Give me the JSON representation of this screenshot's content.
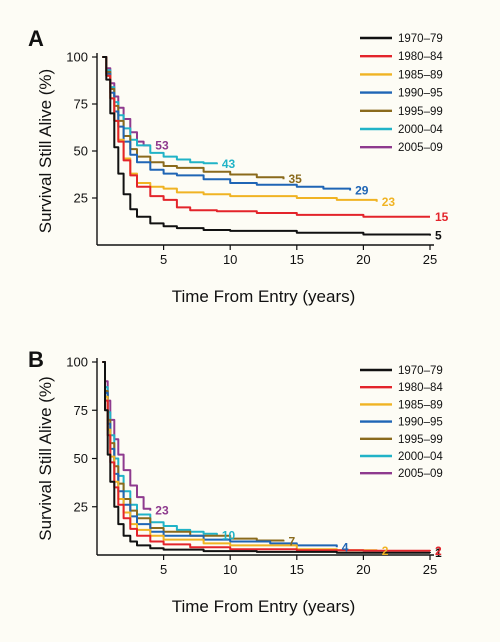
{
  "chart_data": [
    {
      "type": "line",
      "panel_label": "A",
      "xlabel": "Time From Entry (years)",
      "ylabel": "Survival Still Alive (%)",
      "xlim": [
        0,
        25
      ],
      "ylim": [
        0,
        100
      ],
      "xticks": [
        5,
        10,
        15,
        20,
        25
      ],
      "yticks": [
        25,
        50,
        75,
        100
      ],
      "legend_position": "top-right",
      "grid": false,
      "series": [
        {
          "name": "1970–79",
          "color": "#111111",
          "end_label": "5",
          "points": [
            [
              0.4,
              100
            ],
            [
              0.7,
              88
            ],
            [
              1,
              70
            ],
            [
              1.3,
              52
            ],
            [
              1.6,
              38
            ],
            [
              2,
              27
            ],
            [
              2.5,
              19
            ],
            [
              3,
              15
            ],
            [
              4,
              11.5
            ],
            [
              5,
              10
            ],
            [
              6,
              9
            ],
            [
              8,
              8
            ],
            [
              10,
              7.5
            ],
            [
              15,
              6.5
            ],
            [
              20,
              5.6
            ],
            [
              25,
              5
            ]
          ]
        },
        {
          "name": "1980–84",
          "color": "#e3242b",
          "end_label": "15",
          "points": [
            [
              0.4,
              100
            ],
            [
              0.7,
              90
            ],
            [
              1,
              78
            ],
            [
              1.3,
              66
            ],
            [
              1.6,
              55
            ],
            [
              2,
              45
            ],
            [
              2.5,
              37
            ],
            [
              3,
              31
            ],
            [
              4,
              26
            ],
            [
              5,
              24
            ],
            [
              6,
              20
            ],
            [
              7,
              18.5
            ],
            [
              9,
              18
            ],
            [
              12,
              17
            ],
            [
              15,
              16
            ],
            [
              20,
              15
            ],
            [
              25,
              15
            ]
          ]
        },
        {
          "name": "1985–89",
          "color": "#f0b323",
          "end_label": "23",
          "points": [
            [
              0.4,
              100
            ],
            [
              0.7,
              90
            ],
            [
              1,
              78
            ],
            [
              1.3,
              66
            ],
            [
              1.6,
              56
            ],
            [
              2,
              46
            ],
            [
              2.5,
              38
            ],
            [
              3,
              33
            ],
            [
              4,
              31
            ],
            [
              5,
              30
            ],
            [
              6,
              28
            ],
            [
              8,
              27
            ],
            [
              10,
              26
            ],
            [
              15,
              25
            ],
            [
              18,
              24
            ],
            [
              21,
              23
            ]
          ]
        },
        {
          "name": "1990–95",
          "color": "#1f65b5",
          "end_label": "29",
          "points": [
            [
              0.4,
              100
            ],
            [
              0.7,
              91
            ],
            [
              1,
              81
            ],
            [
              1.3,
              71
            ],
            [
              1.6,
              63
            ],
            [
              2,
              55
            ],
            [
              2.5,
              48
            ],
            [
              3,
              44
            ],
            [
              4,
              40
            ],
            [
              5,
              38
            ],
            [
              6,
              37
            ],
            [
              8,
              35
            ],
            [
              10,
              33
            ],
            [
              12,
              32
            ],
            [
              15,
              31
            ],
            [
              17,
              30
            ],
            [
              19,
              29
            ]
          ]
        },
        {
          "name": "1995–99",
          "color": "#8a6a1c",
          "end_label": "35",
          "points": [
            [
              0.4,
              100
            ],
            [
              0.7,
              92
            ],
            [
              1,
              83
            ],
            [
              1.3,
              74
            ],
            [
              1.6,
              66
            ],
            [
              2,
              58
            ],
            [
              2.5,
              51
            ],
            [
              3,
              47
            ],
            [
              4,
              44
            ],
            [
              5,
              42
            ],
            [
              6,
              41
            ],
            [
              8,
              39
            ],
            [
              10,
              37.5
            ],
            [
              12,
              36
            ],
            [
              14,
              35
            ]
          ]
        },
        {
          "name": "2000–04",
          "color": "#21b3c7",
          "end_label": "43",
          "points": [
            [
              0.4,
              100
            ],
            [
              0.7,
              93
            ],
            [
              1,
              84
            ],
            [
              1.3,
              76
            ],
            [
              1.6,
              69
            ],
            [
              2,
              62
            ],
            [
              2.5,
              56
            ],
            [
              3,
              53
            ],
            [
              4,
              49
            ],
            [
              5,
              47
            ],
            [
              6,
              45.5
            ],
            [
              7,
              44
            ],
            [
              8,
              43.5
            ],
            [
              9,
              43
            ]
          ]
        },
        {
          "name": "2005–09",
          "color": "#8e3a8e",
          "end_label": "53",
          "points": [
            [
              0.4,
              100
            ],
            [
              0.7,
              94
            ],
            [
              1,
              86
            ],
            [
              1.3,
              79
            ],
            [
              1.6,
              73
            ],
            [
              2,
              67
            ],
            [
              2.5,
              60
            ],
            [
              3,
              55
            ],
            [
              3.5,
              53
            ],
            [
              4,
              53
            ]
          ]
        }
      ]
    },
    {
      "type": "line",
      "panel_label": "B",
      "xlabel": "Time From Entry (years)",
      "ylabel": "Survival Still Alive (%)",
      "xlim": [
        0,
        25
      ],
      "ylim": [
        0,
        100
      ],
      "xticks": [
        5,
        10,
        15,
        20,
        25
      ],
      "yticks": [
        25,
        50,
        75,
        100
      ],
      "legend_position": "top-right",
      "grid": false,
      "series": [
        {
          "name": "1970–79",
          "color": "#111111",
          "end_label": "1",
          "points": [
            [
              0.4,
              100
            ],
            [
              0.6,
              75
            ],
            [
              0.8,
              52
            ],
            [
              1,
              38
            ],
            [
              1.3,
              25
            ],
            [
              1.6,
              16
            ],
            [
              2,
              10
            ],
            [
              2.5,
              7
            ],
            [
              3,
              5
            ],
            [
              4,
              3.5
            ],
            [
              5,
              2.8
            ],
            [
              8,
              2
            ],
            [
              12,
              1.6
            ],
            [
              18,
              1.2
            ],
            [
              25,
              1
            ]
          ]
        },
        {
          "name": "1980–84",
          "color": "#e3242b",
          "end_label": "2",
          "points": [
            [
              0.4,
              100
            ],
            [
              0.6,
              80
            ],
            [
              0.8,
              62
            ],
            [
              1,
              48
            ],
            [
              1.3,
              35
            ],
            [
              1.6,
              26
            ],
            [
              2,
              19
            ],
            [
              2.5,
              13.5
            ],
            [
              3,
              10
            ],
            [
              4,
              7
            ],
            [
              5,
              5.5
            ],
            [
              7,
              4
            ],
            [
              10,
              3
            ],
            [
              15,
              2.5
            ],
            [
              20,
              2.2
            ],
            [
              25,
              2
            ]
          ]
        },
        {
          "name": "1985–89",
          "color": "#f0b323",
          "end_label": "2",
          "points": [
            [
              0.4,
              100
            ],
            [
              0.6,
              82
            ],
            [
              0.8,
              65
            ],
            [
              1,
              51
            ],
            [
              1.3,
              38
            ],
            [
              1.6,
              29
            ],
            [
              2,
              22
            ],
            [
              2.5,
              16
            ],
            [
              3,
              13
            ],
            [
              4,
              10
            ],
            [
              5,
              8
            ],
            [
              8,
              6
            ],
            [
              10,
              5
            ],
            [
              15,
              3
            ],
            [
              18,
              2.5
            ],
            [
              21,
              2
            ]
          ]
        },
        {
          "name": "1990–95",
          "color": "#1f65b5",
          "end_label": "4",
          "points": [
            [
              0.4,
              100
            ],
            [
              0.6,
              84
            ],
            [
              0.8,
              68
            ],
            [
              1,
              55
            ],
            [
              1.3,
              42
            ],
            [
              1.6,
              33
            ],
            [
              2,
              26
            ],
            [
              2.5,
              20
            ],
            [
              3,
              16
            ],
            [
              4,
              12
            ],
            [
              5,
              10
            ],
            [
              8,
              8
            ],
            [
              10,
              7
            ],
            [
              13,
              6
            ],
            [
              15,
              5
            ],
            [
              18,
              4
            ]
          ]
        },
        {
          "name": "1995–99",
          "color": "#8a6a1c",
          "end_label": "7",
          "points": [
            [
              0.4,
              100
            ],
            [
              0.6,
              85
            ],
            [
              0.8,
              70
            ],
            [
              1,
              58
            ],
            [
              1.3,
              46
            ],
            [
              1.6,
              37
            ],
            [
              2,
              29
            ],
            [
              2.5,
              23
            ],
            [
              3,
              19
            ],
            [
              4,
              14
            ],
            [
              5,
              12
            ],
            [
              7,
              10
            ],
            [
              10,
              8.5
            ],
            [
              12,
              7.5
            ],
            [
              14,
              7
            ]
          ]
        },
        {
          "name": "2000–04",
          "color": "#21b3c7",
          "end_label": "10",
          "points": [
            [
              0.4,
              100
            ],
            [
              0.6,
              87
            ],
            [
              0.8,
              74
            ],
            [
              1,
              62
            ],
            [
              1.3,
              50
            ],
            [
              1.6,
              41
            ],
            [
              2,
              33
            ],
            [
              2.5,
              26
            ],
            [
              3,
              21
            ],
            [
              4,
              17
            ],
            [
              5,
              15
            ],
            [
              6,
              13
            ],
            [
              7,
              12
            ],
            [
              8,
              11
            ],
            [
              9,
              10
            ]
          ]
        },
        {
          "name": "2005–09",
          "color": "#8e3a8e",
          "end_label": "23",
          "points": [
            [
              0.4,
              100
            ],
            [
              0.6,
              90
            ],
            [
              0.8,
              80
            ],
            [
              1,
              70
            ],
            [
              1.3,
              60
            ],
            [
              1.6,
              52
            ],
            [
              2,
              44
            ],
            [
              2.5,
              36
            ],
            [
              3,
              30
            ],
            [
              3.5,
              24
            ],
            [
              4,
              23
            ]
          ]
        }
      ]
    }
  ]
}
